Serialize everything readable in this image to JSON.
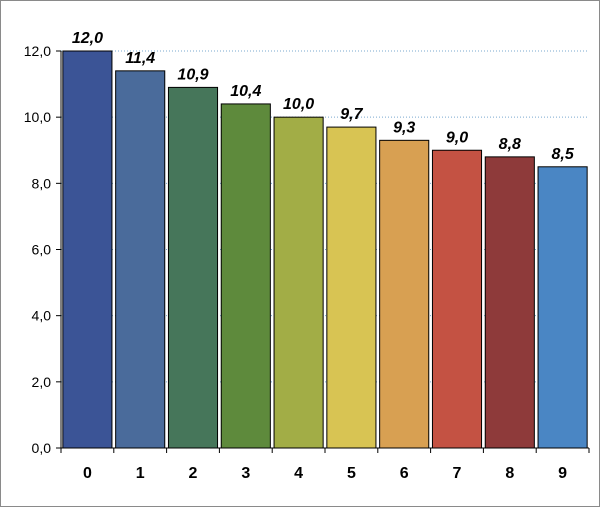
{
  "chart_data": {
    "type": "bar",
    "title": "",
    "xlabel": "",
    "ylabel": "",
    "categories": [
      "0",
      "1",
      "2",
      "3",
      "4",
      "5",
      "6",
      "7",
      "8",
      "9"
    ],
    "values": [
      12.0,
      11.4,
      10.9,
      10.4,
      10.0,
      9.7,
      9.3,
      9.0,
      8.8,
      8.5
    ],
    "value_labels": [
      "12,0",
      "11,4",
      "10,9",
      "10,4",
      "10,0",
      "9,7",
      "9,3",
      "9,0",
      "8,8",
      "8,5"
    ],
    "ylim": [
      0,
      12
    ],
    "yticks": [
      0,
      2,
      4,
      6,
      8,
      10,
      12
    ],
    "ytick_labels": [
      "0,0",
      "2,0",
      "4,0",
      "6,0",
      "8,0",
      "10,0",
      "12,0"
    ],
    "grid": "horizontal dotted",
    "legend": "none",
    "bar_colors": [
      "#3b5496",
      "#4a6b9b",
      "#46765a",
      "#5e8a3c",
      "#a2ad46",
      "#d8c453",
      "#d8a052",
      "#c45243",
      "#8e3a3a",
      "#4a86c4"
    ],
    "gridline_color": "#7aa9cf",
    "axis_color": "#000000"
  }
}
